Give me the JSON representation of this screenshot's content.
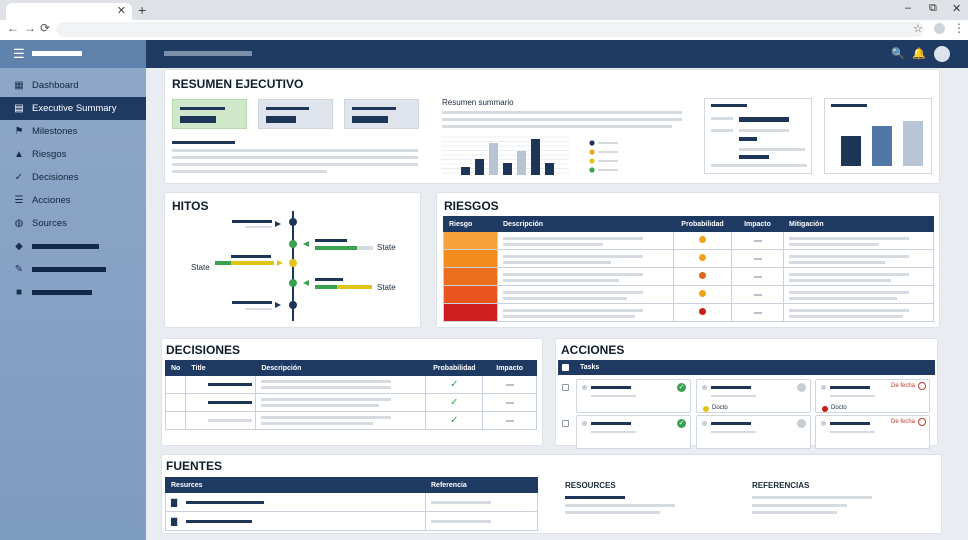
{
  "window": {
    "close_glyph": "✕",
    "new_tab_glyph": "+",
    "min_glyph": "–",
    "max_glyph": "⧉",
    "win_close_glyph": "✕"
  },
  "icons": {
    "back": "←",
    "forward": "→",
    "reload": "⟳",
    "star": "☆",
    "kebab": "⋮",
    "hamburger": "☰",
    "search": "🔍",
    "bell": "🔔"
  },
  "sidebar": {
    "items": [
      {
        "label": "Dashboard",
        "icon": "▦"
      },
      {
        "label": "Executive Summary",
        "icon": "▤"
      },
      {
        "label": "Milestones",
        "icon": "⚑"
      },
      {
        "label": "Riesgos",
        "icon": "▲"
      },
      {
        "label": "Decisiones",
        "icon": "✓"
      },
      {
        "label": "Acciones",
        "icon": "☰"
      },
      {
        "label": "Sources",
        "icon": "◍"
      }
    ],
    "extra_icons": [
      "◆",
      "✎",
      "■"
    ]
  },
  "summary": {
    "title": "RESUMEN EJECUTIVO",
    "chart_label": "Resumen summario"
  },
  "chart_data": {
    "type": "bar",
    "categories": [
      "1",
      "2",
      "3",
      "4",
      "5",
      "6",
      "7"
    ],
    "values": [
      2,
      4,
      8,
      3,
      6,
      9,
      3
    ],
    "colors": [
      "#1d3557",
      "#1d3557",
      "#b8c4d2",
      "#1d3557",
      "#b8c4d2",
      "#1d3557",
      "#1d3557"
    ],
    "legend_colors": [
      "#1d3557",
      "#f0a31a",
      "#e0c419",
      "#3aa151"
    ]
  },
  "chart_data_2": {
    "type": "bar",
    "values": [
      6,
      8,
      9
    ],
    "colors": [
      "#1d3557",
      "#5177a8",
      "#b7c5d6"
    ]
  },
  "hitos": {
    "title": "HITOS",
    "state1": "State",
    "state2": "State",
    "state3": "State"
  },
  "riesgos": {
    "title": "RIESGOS",
    "headers": [
      "Riesgo",
      "Descripción",
      "Probabilidad",
      "Impacto",
      "Mitigación"
    ],
    "rows": [
      {
        "color": "#f7a23a",
        "dot": "#f0a31a"
      },
      {
        "color": "#f28c1d",
        "dot": "#f0a31a"
      },
      {
        "color": "#ec6d1d",
        "dot": "#e0661b"
      },
      {
        "color": "#e9561d",
        "dot": "#f0a31a"
      },
      {
        "color": "#d01f1f",
        "dot": "#c91d1d"
      }
    ]
  },
  "decisiones": {
    "title": "DECISIONES",
    "headers": [
      "No",
      "Title",
      "Descripción",
      "Probabilidad",
      "Impacto"
    ],
    "check": "✓"
  },
  "acciones": {
    "title": "ACCIONES",
    "header": "Tasks",
    "due": "De fecha",
    "tag1": "Docto",
    "tag2": "Docto"
  },
  "fuentes": {
    "title": "FUENTES",
    "headers": [
      "Resurces",
      "Referencia"
    ],
    "resources_label": "RESOURCES",
    "referencias_label": "REFERENCIAS"
  }
}
